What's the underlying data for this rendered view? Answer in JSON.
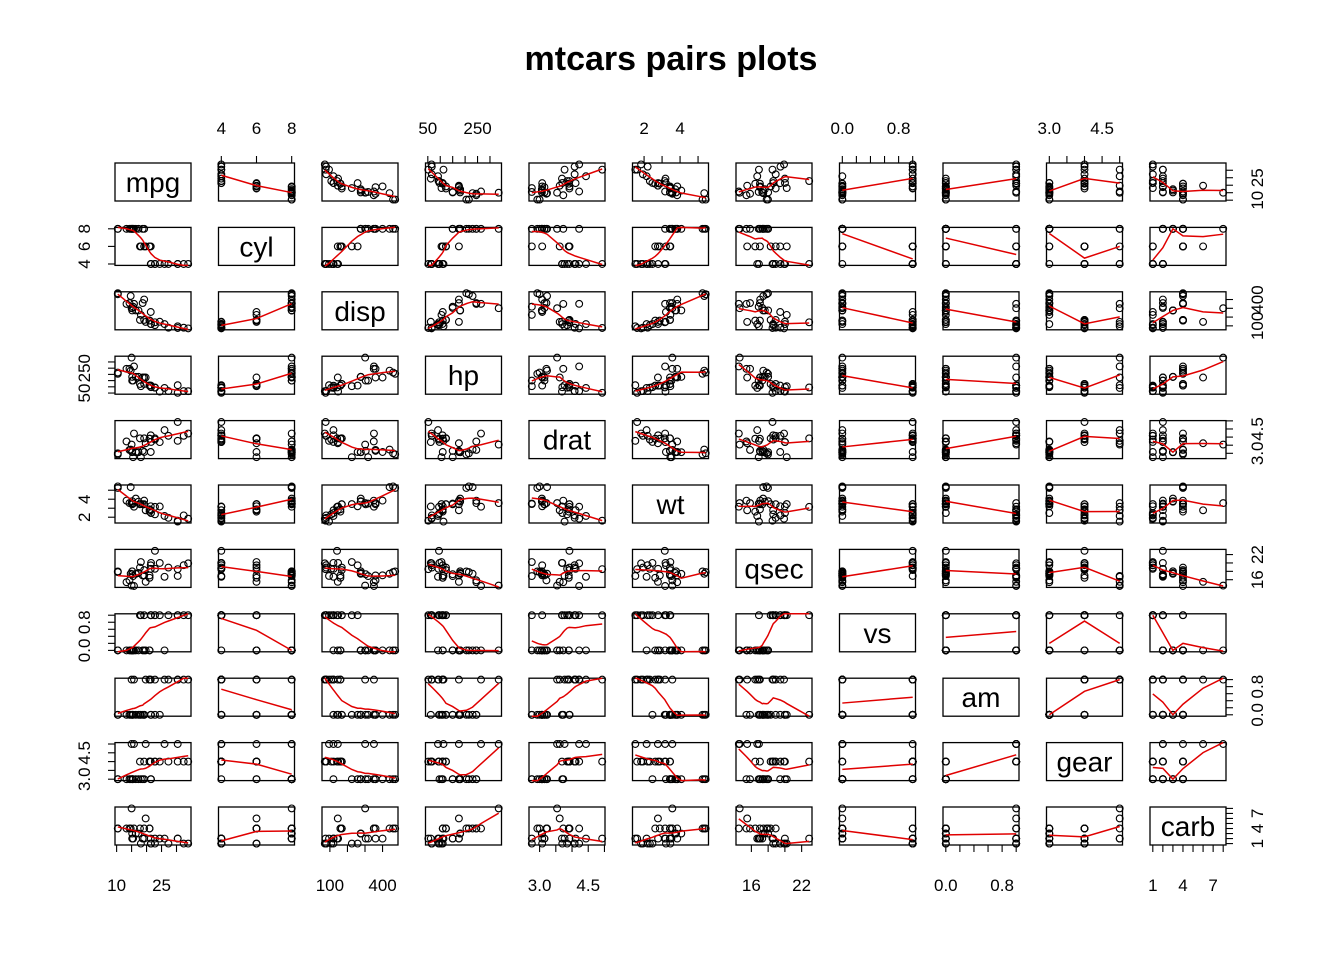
{
  "chart_data": {
    "type": "scatter",
    "title": "mtcars pairs plots",
    "variables": [
      "mpg",
      "cyl",
      "disp",
      "hp",
      "drat",
      "wt",
      "qsec",
      "vs",
      "am",
      "gear",
      "carb"
    ],
    "smoother_color": "#e00000",
    "point_color": "#000000",
    "axis_ticks": {
      "mpg": {
        "ticks": [
          10,
          15,
          20,
          25,
          30
        ],
        "labels": [
          "10",
          "25"
        ],
        "side": "bottom/right"
      },
      "cyl": {
        "ticks": [
          4,
          6,
          8
        ],
        "labels": [
          "4",
          "6",
          "8"
        ],
        "side": "top/left"
      },
      "disp": {
        "ticks": [
          100,
          200,
          300,
          400
        ],
        "labels": [
          "100",
          "400"
        ],
        "side": "bottom/right"
      },
      "hp": {
        "ticks": [
          50,
          100,
          150,
          200,
          250,
          300
        ],
        "labels": [
          "50",
          "250"
        ],
        "side": "top/left"
      },
      "drat": {
        "ticks": [
          3.0,
          3.5,
          4.0,
          4.5,
          5.0
        ],
        "labels": [
          "3.0",
          "4.5"
        ],
        "side": "bottom/right"
      },
      "wt": {
        "ticks": [
          2,
          3,
          4,
          5
        ],
        "labels": [
          "2",
          "4"
        ],
        "side": "top/left"
      },
      "qsec": {
        "ticks": [
          16,
          18,
          20,
          22
        ],
        "labels": [
          "16",
          "22"
        ],
        "side": "bottom/right"
      },
      "vs": {
        "ticks": [
          0.0,
          0.2,
          0.4,
          0.6,
          0.8,
          1.0
        ],
        "labels": [
          "0.0",
          "0.8"
        ],
        "side": "top/left"
      },
      "am": {
        "ticks": [
          0.0,
          0.2,
          0.4,
          0.6,
          0.8,
          1.0
        ],
        "labels": [
          "0.0",
          "0.8"
        ],
        "side": "bottom/right"
      },
      "gear": {
        "ticks": [
          3.0,
          3.5,
          4.0,
          4.5,
          5.0
        ],
        "labels": [
          "3.0",
          "4.5"
        ],
        "side": "top/left"
      },
      "carb": {
        "ticks": [
          1,
          2,
          3,
          4,
          5,
          6,
          7,
          8
        ],
        "labels": [
          "1",
          "4",
          "7"
        ],
        "side": "bottom/right"
      }
    },
    "data": {
      "mpg": [
        21.0,
        21.0,
        22.8,
        21.4,
        18.7,
        18.1,
        14.3,
        24.4,
        22.8,
        19.2,
        17.8,
        16.4,
        17.3,
        15.2,
        10.4,
        10.4,
        14.7,
        32.4,
        30.4,
        33.9,
        21.5,
        15.5,
        15.2,
        13.3,
        19.2,
        27.3,
        26.0,
        30.4,
        15.8,
        19.7,
        15.0,
        21.4
      ],
      "cyl": [
        6,
        6,
        4,
        6,
        8,
        6,
        8,
        4,
        4,
        6,
        6,
        8,
        8,
        8,
        8,
        8,
        8,
        4,
        4,
        4,
        4,
        8,
        8,
        8,
        8,
        4,
        4,
        4,
        8,
        6,
        8,
        4
      ],
      "disp": [
        160.0,
        160.0,
        108.0,
        258.0,
        360.0,
        225.0,
        360.0,
        146.7,
        140.8,
        167.6,
        167.6,
        275.8,
        275.8,
        275.8,
        472.0,
        460.0,
        440.0,
        78.7,
        75.7,
        71.1,
        120.1,
        318.0,
        304.0,
        350.0,
        400.0,
        79.0,
        120.3,
        95.1,
        351.0,
        145.0,
        301.0,
        121.0
      ],
      "hp": [
        110,
        110,
        93,
        110,
        175,
        105,
        245,
        62,
        95,
        123,
        123,
        180,
        180,
        180,
        205,
        215,
        230,
        66,
        52,
        65,
        97,
        150,
        150,
        245,
        175,
        66,
        91,
        113,
        264,
        175,
        335,
        109
      ],
      "drat": [
        3.9,
        3.9,
        3.85,
        3.08,
        3.15,
        2.76,
        3.21,
        3.69,
        3.92,
        3.92,
        3.92,
        3.07,
        3.07,
        3.07,
        2.93,
        3.0,
        3.23,
        4.08,
        4.93,
        4.22,
        3.7,
        2.76,
        3.15,
        3.73,
        3.08,
        4.08,
        4.43,
        3.77,
        4.22,
        3.62,
        3.54,
        4.11
      ],
      "wt": [
        2.62,
        2.875,
        2.32,
        3.215,
        3.44,
        3.46,
        3.57,
        3.19,
        3.15,
        3.44,
        3.44,
        4.07,
        3.73,
        3.78,
        5.25,
        5.424,
        5.345,
        2.2,
        1.615,
        1.835,
        2.465,
        3.52,
        3.435,
        3.84,
        3.845,
        1.935,
        2.14,
        1.513,
        3.17,
        2.77,
        3.57,
        2.78
      ],
      "qsec": [
        16.46,
        17.02,
        18.61,
        19.44,
        17.02,
        20.22,
        15.84,
        20.0,
        22.9,
        18.3,
        18.9,
        17.4,
        17.6,
        18.0,
        17.98,
        17.82,
        17.42,
        19.47,
        18.52,
        19.9,
        20.01,
        16.87,
        17.3,
        15.41,
        17.05,
        18.9,
        16.7,
        16.9,
        14.5,
        15.5,
        14.6,
        18.6
      ],
      "vs": [
        0,
        0,
        1,
        1,
        0,
        1,
        0,
        1,
        1,
        1,
        1,
        0,
        0,
        0,
        0,
        0,
        0,
        1,
        1,
        1,
        1,
        0,
        0,
        0,
        0,
        1,
        0,
        1,
        0,
        0,
        0,
        1
      ],
      "am": [
        1,
        1,
        1,
        0,
        0,
        0,
        0,
        0,
        0,
        0,
        0,
        0,
        0,
        0,
        0,
        0,
        0,
        1,
        1,
        1,
        0,
        0,
        0,
        0,
        0,
        1,
        1,
        1,
        1,
        1,
        1,
        1
      ],
      "gear": [
        4,
        4,
        4,
        3,
        3,
        3,
        3,
        4,
        4,
        4,
        4,
        3,
        3,
        3,
        3,
        3,
        3,
        4,
        4,
        4,
        3,
        3,
        3,
        3,
        3,
        4,
        5,
        5,
        5,
        5,
        5,
        4
      ],
      "carb": [
        4,
        4,
        1,
        1,
        2,
        1,
        4,
        2,
        2,
        4,
        4,
        3,
        3,
        3,
        4,
        4,
        4,
        1,
        2,
        1,
        1,
        2,
        2,
        4,
        2,
        1,
        2,
        2,
        4,
        6,
        8,
        2
      ]
    }
  }
}
